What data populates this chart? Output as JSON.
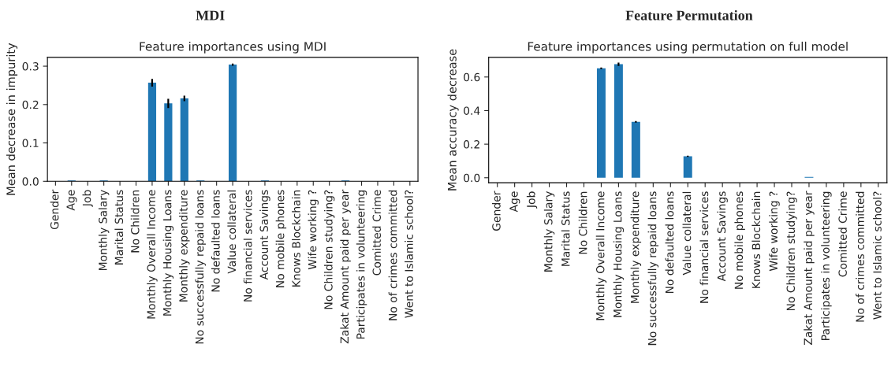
{
  "chart_data": [
    {
      "type": "bar",
      "title": "MDI",
      "subtitle": "Feature importances using MDI",
      "ylabel": "Mean decrease in impurity",
      "categories": [
        "Gender",
        "Age",
        "Job",
        "Monthly Salary",
        "Marital Status",
        "No Children",
        "Monthly Overall Income",
        "Monthly Housing Loans",
        "Monthly expenditure",
        "No successfully repaid loans",
        "No defaulted loans",
        "Value collateral",
        "No financial services",
        "Account Savings",
        "No mobile phones",
        "Knows Blockchain",
        "Wife working ?",
        "No Children studying?",
        "Zakat Amount paid per year",
        "Participates in volunteering",
        "Comitted Crime",
        "No of crimes committed",
        "Went to Islamic school?"
      ],
      "values": [
        0,
        0.002,
        0,
        0.002,
        0,
        0,
        0.257,
        0.203,
        0.216,
        0.002,
        0,
        0.304,
        0,
        0.002,
        0,
        0,
        0,
        0,
        0.002,
        0,
        0,
        0,
        0
      ],
      "errors": [
        null,
        null,
        null,
        null,
        null,
        null,
        0.01,
        0.012,
        0.007,
        null,
        null,
        0.003,
        null,
        null,
        null,
        null,
        null,
        null,
        null,
        null,
        null,
        null,
        null
      ],
      "color": "#1f77b4",
      "ylim": [
        0,
        0.323
      ],
      "yticks": [
        {
          "value": 0,
          "label": "0.0"
        },
        0.1,
        0.2,
        0.3
      ],
      "grid": false
    },
    {
      "type": "bar",
      "title": "Feature Permutation",
      "subtitle": "Feature importances using permutation on full model",
      "ylabel": "Mean accuracy decrease",
      "categories": [
        "Gender",
        "Age",
        "Job",
        "Monthly Salary",
        "Marital Status",
        "No Children",
        "Monthly Overall Income",
        "Monthly Housing Loans",
        "Monthly expenditure",
        "No successfully repaid loans",
        "No defaulted loans",
        "Value collateral",
        "No financial services",
        "Account Savings",
        "No mobile phones",
        "Knows Blockchain",
        "Wife working ?",
        "No Children studying?",
        "Zakat Amount paid per year",
        "Participates in volunteering",
        "Comitted Crime",
        "No of crimes committed",
        "Went to Islamic school?"
      ],
      "values": [
        0,
        0,
        0,
        0,
        0,
        0,
        0.652,
        0.676,
        0.333,
        0,
        0,
        0.128,
        0,
        0,
        0,
        0,
        0,
        0,
        0.005,
        0,
        0,
        0,
        0
      ],
      "errors": [
        null,
        null,
        null,
        null,
        null,
        null,
        0.005,
        0.01,
        0.005,
        null,
        null,
        0.004,
        null,
        null,
        null,
        null,
        null,
        null,
        null,
        null,
        null,
        null,
        null
      ],
      "color": "#1f77b4",
      "ylim": [
        -0.03,
        0.717
      ],
      "yticks": [
        {
          "value": 0,
          "label": "0.0"
        },
        0.2,
        0.4,
        0.6
      ],
      "grid": false
    }
  ]
}
